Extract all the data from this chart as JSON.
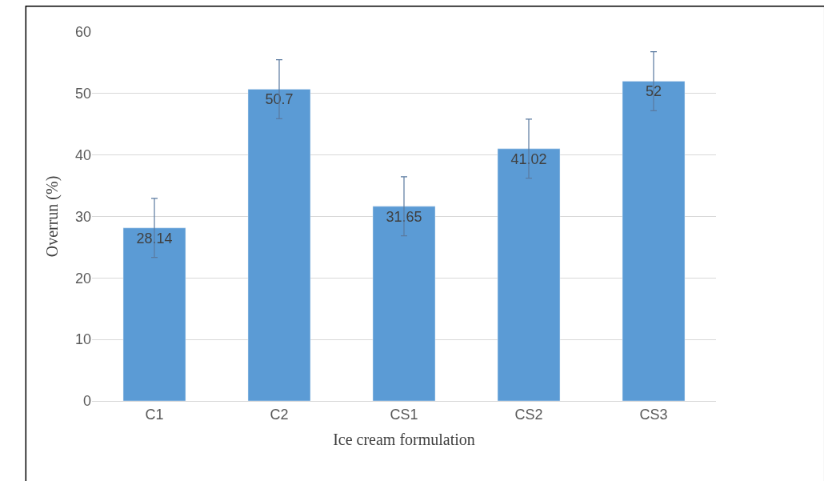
{
  "chart_data": {
    "type": "bar",
    "xlabel": "Ice cream formulation",
    "ylabel": "Overrun (%)",
    "categories": [
      "C1",
      "C2",
      "CS1",
      "CS2",
      "CS3"
    ],
    "values": [
      28.14,
      50.7,
      31.65,
      41.02,
      52
    ],
    "errors": [
      4.8,
      4.8,
      4.8,
      4.8,
      4.8
    ],
    "color": "#5b9bd5",
    "ylim": [
      0,
      60
    ],
    "yticks": [
      0,
      10,
      20,
      30,
      40,
      50,
      60
    ],
    "grid": "y",
    "data_labels": true,
    "legend": false
  }
}
